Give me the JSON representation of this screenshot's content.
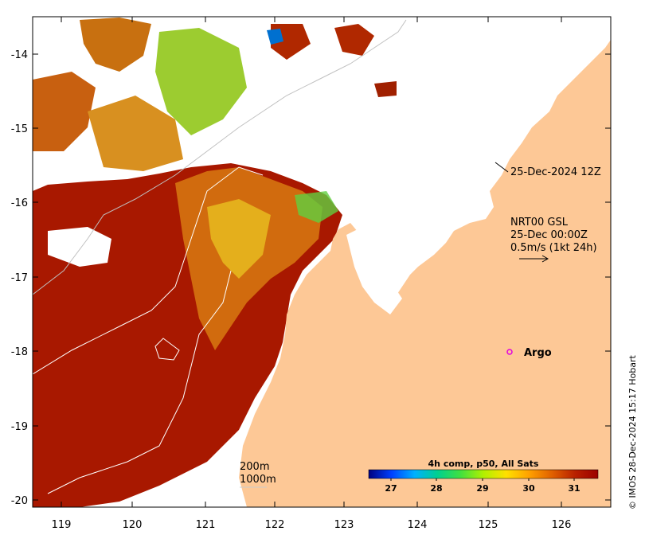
{
  "map": {
    "y_ticks": [
      "-14",
      "-15",
      "-16",
      "-17",
      "-18",
      "-19",
      "-20"
    ],
    "x_ticks": [
      "119",
      "120",
      "121",
      "122",
      "123",
      "124",
      "125",
      "126"
    ],
    "date_label": "25-Dec-2024 12Z",
    "current_label_line1": "NRT00 GSL",
    "current_label_line2": "25-Dec 00:00Z",
    "current_label_line3": "0.5m/s (1kt 24h)",
    "argo_label": "Argo",
    "contour_200": "200m",
    "contour_1000": "1000m",
    "credit": "© IMOS 28-Dec-2024 15:17 Hobart",
    "land_color": "#fdc896",
    "colorbar": {
      "title": "4h comp, p50, All Sats",
      "labels": [
        "27",
        "28",
        "29",
        "30",
        "31"
      ],
      "colors": [
        "#000080",
        "#0040ff",
        "#00b0ff",
        "#00d090",
        "#40e040",
        "#b0f000",
        "#ffe000",
        "#ffa000",
        "#e06000",
        "#b82000",
        "#9c0000"
      ]
    }
  }
}
